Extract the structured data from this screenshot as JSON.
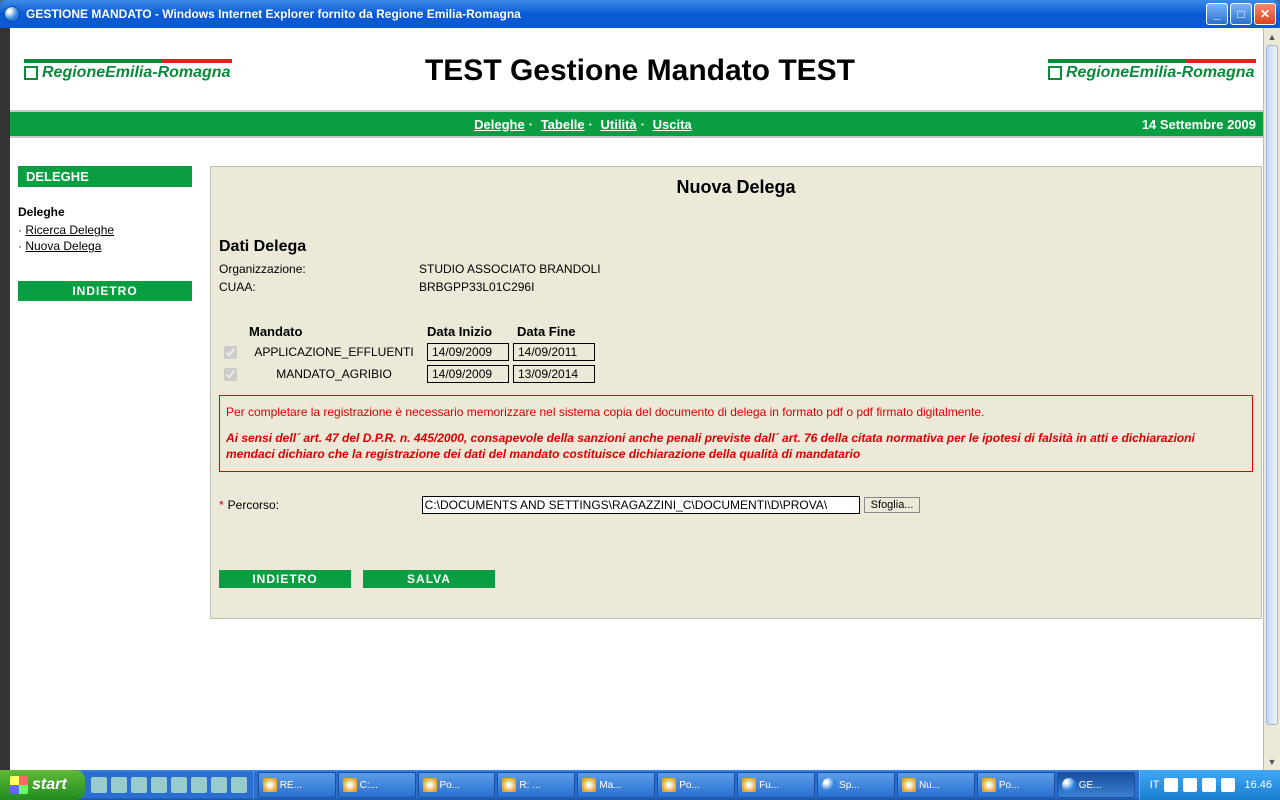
{
  "window": {
    "title": "GESTIONE MANDATO - Windows Internet Explorer fornito da Regione Emilia-Romagna"
  },
  "header": {
    "logo_text": "RegioneEmilia-Romagna",
    "title": "TEST Gestione Mandato TEST"
  },
  "navbar": {
    "links": [
      "Deleghe",
      "Tabelle",
      "Utilità",
      "Uscita"
    ],
    "date": "14 Settembre 2009"
  },
  "sidebar": {
    "title": "DELEGHE",
    "section": "Deleghe",
    "items": [
      {
        "label": "Ricerca Deleghe"
      },
      {
        "label": "Nuova Delega"
      }
    ],
    "back": "INDIETRO"
  },
  "main": {
    "title": "Nuova Delega",
    "section": "Dati Delega",
    "org_label": "Organizzazione:",
    "org_value": "STUDIO ASSOCIATO BRANDOLI",
    "cuaa_label": "CUAA:",
    "cuaa_value": "BRBGPP33L01C296I",
    "table": {
      "h1": "Mandato",
      "h2": "Data Inizio",
      "h3": "Data Fine",
      "rows": [
        {
          "name": "APPLICAZIONE_EFFLUENTI",
          "start": "14/09/2009",
          "end": "14/09/2011"
        },
        {
          "name": "MANDATO_AGRIBIO",
          "start": "14/09/2009",
          "end": "13/09/2014"
        }
      ]
    },
    "notice": {
      "p1": "Per completare la registrazione è necessario memorizzare nel sistema copia del documento di delega in formato pdf o pdf firmato digitalmente.",
      "p2": "Ai sensi dell´ art. 47 del D.P.R. n. 445/2000, consapevole della sanzioni anche penali previste dall´ art. 76 della citata normativa per le ipotesi di falsità in atti e dichiarazioni mendaci dichiaro che la registrazione dei dati del mandato costituisce dichiarazione della qualità di mandatario"
    },
    "percorso": {
      "label": "Percorso:",
      "value": "C:\\DOCUMENTS AND SETTINGS\\RAGAZZINI_C\\DOCUMENTI\\D\\PROVA\\",
      "browse": "Sfoglia..."
    },
    "buttons": {
      "back": "INDIETRO",
      "save": "SALVA"
    }
  },
  "taskbar": {
    "start": "start",
    "tasks": [
      "RE...",
      "C:...",
      "Po...",
      "R: ...",
      "Ma...",
      "Po...",
      "Fu...",
      "Sp...",
      "Nu...",
      "Po...",
      "GE..."
    ],
    "lang": "IT",
    "clock": "16.46"
  },
  "colors": {
    "green": "#0a9e42",
    "red": "#d8261c",
    "panel": "#ece9d8",
    "xp_blue": "#2a6fd0"
  }
}
